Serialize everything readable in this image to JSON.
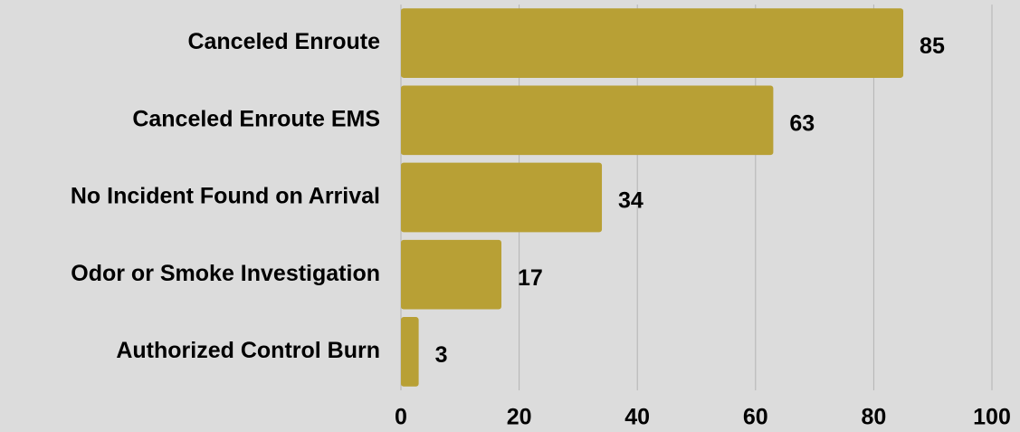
{
  "chart_data": {
    "type": "bar",
    "orientation": "horizontal",
    "categories": [
      "Canceled Enroute",
      "Canceled Enroute EMS",
      "No Incident Found on Arrival",
      "Odor or Smoke Investigation",
      "Authorized Control Burn"
    ],
    "values": [
      85,
      63,
      34,
      17,
      3
    ],
    "color": "#b8a035",
    "xlim": [
      0,
      100
    ],
    "xticks": [
      0,
      20,
      40,
      60,
      80,
      100
    ],
    "grid": true
  }
}
